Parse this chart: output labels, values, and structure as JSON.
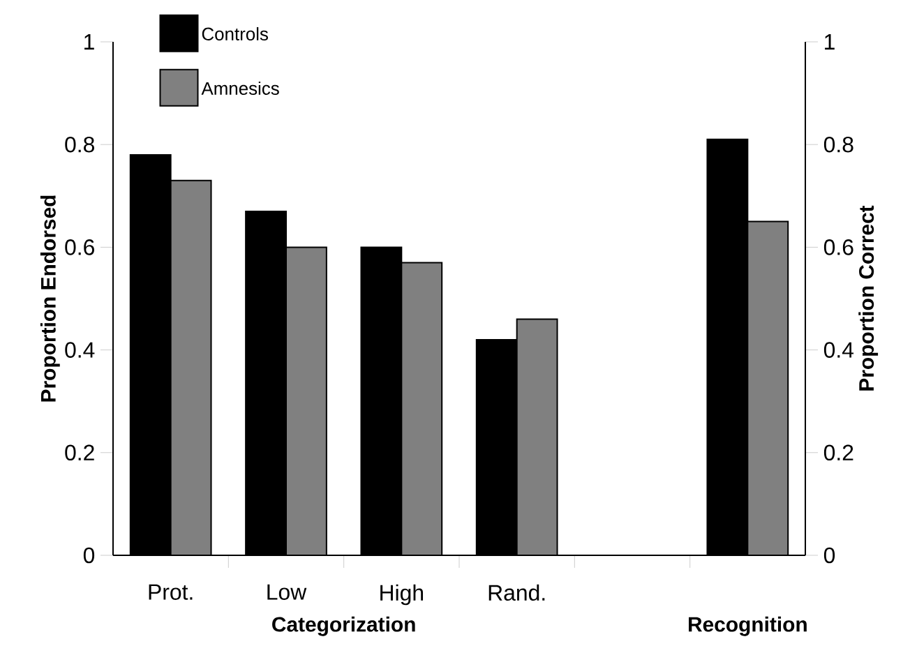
{
  "chart_data": {
    "type": "bar",
    "categories": [
      "Prot.",
      "Low",
      "High",
      "Rand.",
      null,
      null
    ],
    "series": [
      {
        "name": "Controls",
        "color": "#000000",
        "values": [
          0.78,
          0.67,
          0.6,
          0.42,
          null,
          0.81
        ]
      },
      {
        "name": "Amnesics",
        "color": "#808080",
        "values": [
          0.73,
          0.6,
          0.57,
          0.46,
          null,
          0.65
        ]
      }
    ],
    "xlabel": "Categorization",
    "ylabel": "Proportion Endorsed",
    "y2label": "Proportion Correct",
    "annotations": [
      "Recognition"
    ],
    "ylim": [
      0,
      1
    ],
    "yticks": [
      0,
      0.2,
      0.4,
      0.6,
      0.8,
      1
    ],
    "y2lim": [
      0,
      1
    ],
    "y2ticks": [
      0,
      0.2,
      0.4,
      0.6,
      0.8,
      1
    ],
    "grid": false,
    "legend": "top left"
  }
}
